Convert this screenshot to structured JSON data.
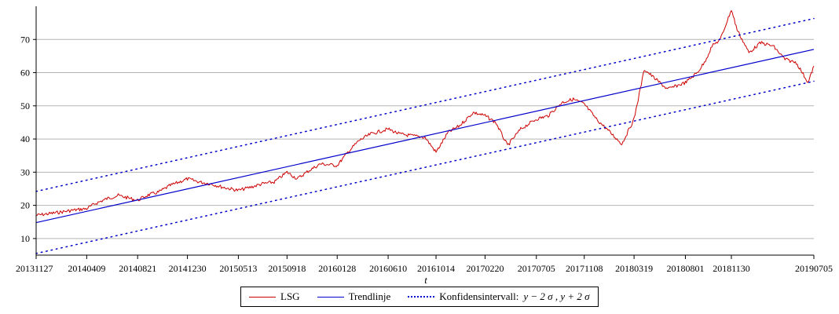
{
  "chart_data": {
    "type": "line",
    "xlabel": "t",
    "ylabel": "",
    "x_tick_labels": [
      "20131127",
      "20140409",
      "20140821",
      "20141230",
      "20150513",
      "20150918",
      "20160128",
      "20160610",
      "20161014",
      "20170220",
      "20170705",
      "20171108",
      "20180319",
      "20180801",
      "20181130",
      "20190705"
    ],
    "yticks": [
      10,
      20,
      30,
      40,
      50,
      60,
      70
    ],
    "ylim": [
      5,
      80
    ],
    "grid": "horizontal",
    "legend_position": "bottom-center",
    "series": [
      {
        "name": "LSG",
        "color": "#cc0000",
        "style": "solid",
        "x": [
          "20131127",
          "20140101",
          "20140201",
          "20140301",
          "20140409",
          "20140501",
          "20140601",
          "20140701",
          "20140821",
          "20140915",
          "20141015",
          "20141115",
          "20141230",
          "20150201",
          "20150301",
          "20150401",
          "20150513",
          "20150615",
          "20150715",
          "20150815",
          "20150918",
          "20151015",
          "20151115",
          "20151215",
          "20160128",
          "20160225",
          "20160325",
          "20160425",
          "20160610",
          "20160710",
          "20160810",
          "20160915",
          "20161014",
          "20161115",
          "20161215",
          "20170120",
          "20170220",
          "20170320",
          "20170420",
          "20170525",
          "20170705",
          "20170805",
          "20170910",
          "20171010",
          "20171108",
          "20171210",
          "20180115",
          "20180215",
          "20180319",
          "20180415",
          "20180515",
          "20180615",
          "20180801",
          "20180901",
          "20180920",
          "20181010",
          "20181101",
          "20181130",
          "20181215",
          "20190115",
          "20190215",
          "20190320",
          "20190420",
          "20190520",
          "20190620",
          "20190705"
        ],
        "values": [
          17,
          17.5,
          18,
          18.5,
          19,
          20.5,
          22,
          23,
          21.5,
          23,
          24,
          26,
          28,
          27,
          26.5,
          25.5,
          24.5,
          25.5,
          26.5,
          27,
          30,
          28,
          30.5,
          32.5,
          32,
          36,
          39.5,
          41.5,
          43,
          41.5,
          41,
          40.5,
          36,
          42,
          44,
          48,
          47,
          45,
          38,
          43,
          46,
          47,
          51,
          52,
          50.5,
          46,
          42,
          38.5,
          46,
          61,
          58,
          55,
          57,
          60,
          63,
          68,
          70,
          79,
          73,
          66,
          69,
          68,
          64,
          63,
          57,
          62
        ]
      },
      {
        "name": "Trendlinje",
        "color": "#0000cc",
        "style": "solid",
        "x": [
          "20131127",
          "20190705"
        ],
        "values": [
          14.8,
          67
        ]
      },
      {
        "name": "Konfidensintervall: y - 2 σ , y + 2 σ",
        "color": "#0000cc",
        "style": "dotted",
        "lines": [
          {
            "x": [
              "20131127",
              "20190705"
            ],
            "values": [
              24.2,
              76.3
            ]
          },
          {
            "x": [
              "20131127",
              "20190705"
            ],
            "values": [
              5.5,
              57.4
            ]
          }
        ]
      }
    ]
  },
  "legend": {
    "item1": "LSG",
    "item2": "Trendlinje",
    "item3_prefix": "Konfidensintervall:",
    "item3_expr": "y − 2 σ , y + 2 σ"
  }
}
